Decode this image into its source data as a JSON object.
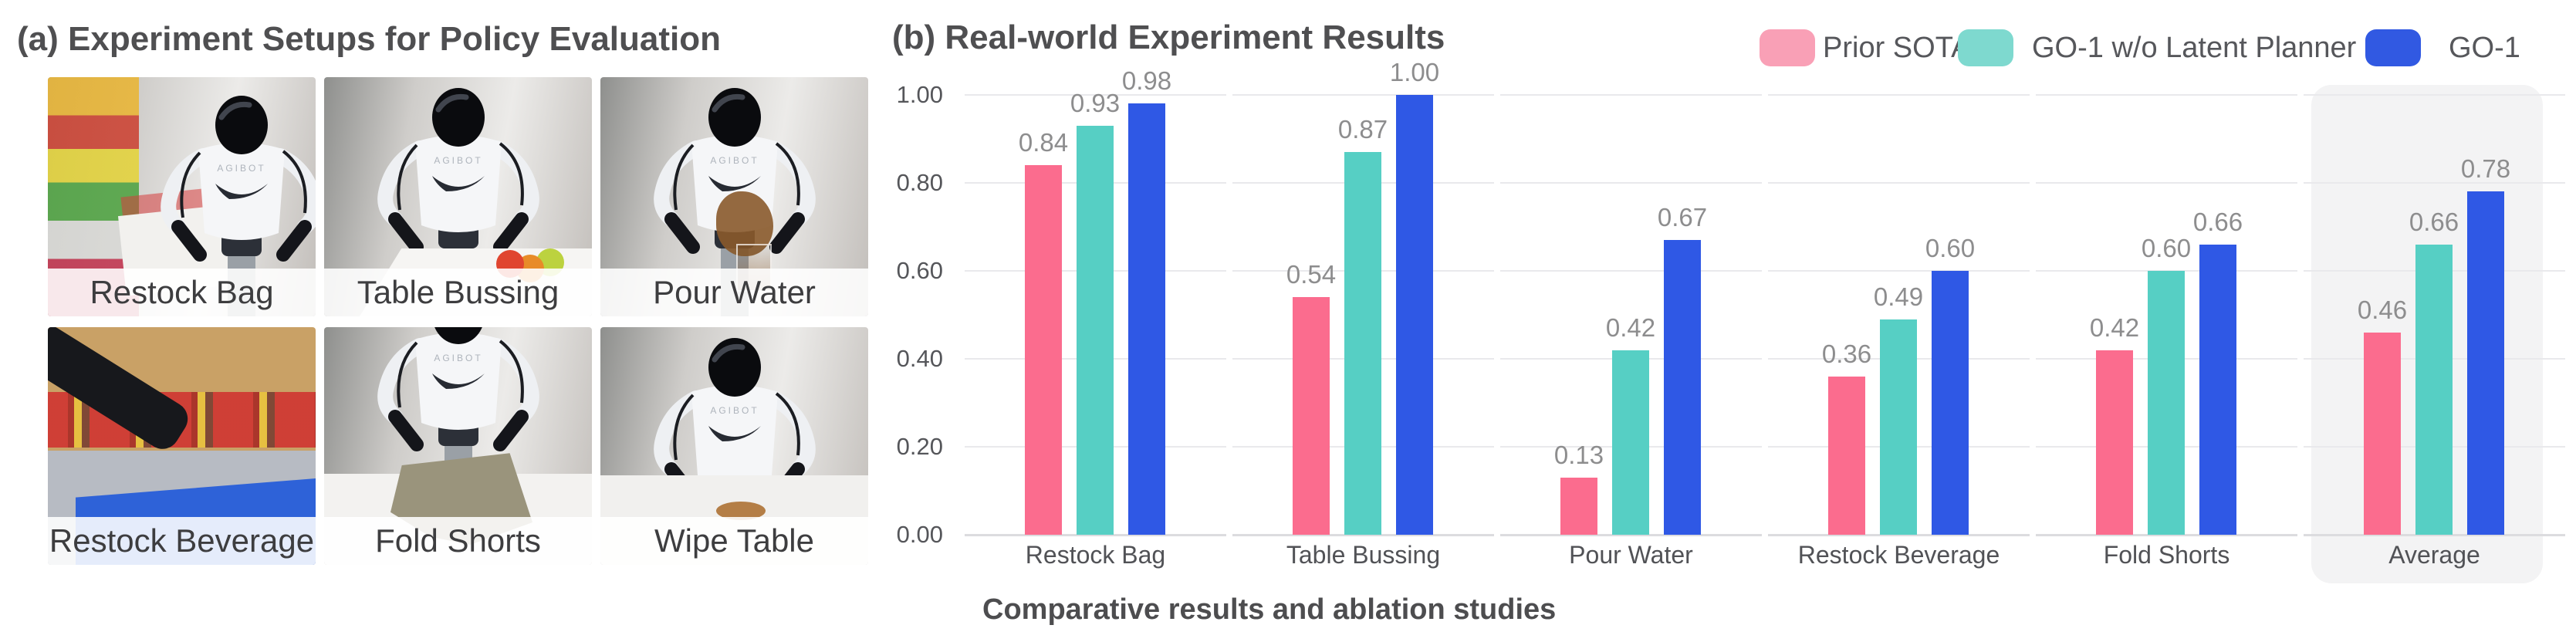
{
  "panel_a": {
    "title": "(a) Experiment Setups for Policy Evaluation",
    "scenes": [
      {
        "label": "Restock Bag"
      },
      {
        "label": "Table Bussing"
      },
      {
        "label": "Pour Water"
      },
      {
        "label": "Restock Beverage"
      },
      {
        "label": "Fold Shorts"
      },
      {
        "label": "Wipe Table"
      }
    ]
  },
  "panel_b": {
    "title": "(b) Real-world Experiment Results",
    "caption": "Comparative results and ablation studies"
  },
  "chart_data": {
    "type": "bar",
    "title": "(b) Real-world Experiment Results",
    "categories": [
      "Restock Bag",
      "Table Bussing",
      "Pour Water",
      "Restock Beverage",
      "Fold Shorts",
      "Average"
    ],
    "series": [
      {
        "name": "Prior SOTA",
        "color": "#FB6C8E",
        "values": [
          0.84,
          0.54,
          0.13,
          0.36,
          0.42,
          0.46
        ]
      },
      {
        "name": "GO-1 w/o Latent Planner",
        "color": "#56CFC4",
        "values": [
          0.93,
          0.87,
          0.42,
          0.49,
          0.6,
          0.66
        ]
      },
      {
        "name": "GO-1",
        "color": "#2F58E5",
        "values": [
          0.98,
          1.0,
          0.67,
          0.6,
          0.66,
          0.78
        ]
      }
    ],
    "legend_colors": [
      "#F9A0B6",
      "#7ED9CF",
      "#3159E2"
    ],
    "ylim": [
      0,
      1.0
    ],
    "yticks": [
      "0.00",
      "0.20",
      "0.40",
      "0.60",
      "0.80",
      "1.00"
    ],
    "grid": true,
    "legend_position": "top-right",
    "highlight_category": "Average",
    "highlight_color": "#F3F3F4",
    "value_labels": true
  }
}
